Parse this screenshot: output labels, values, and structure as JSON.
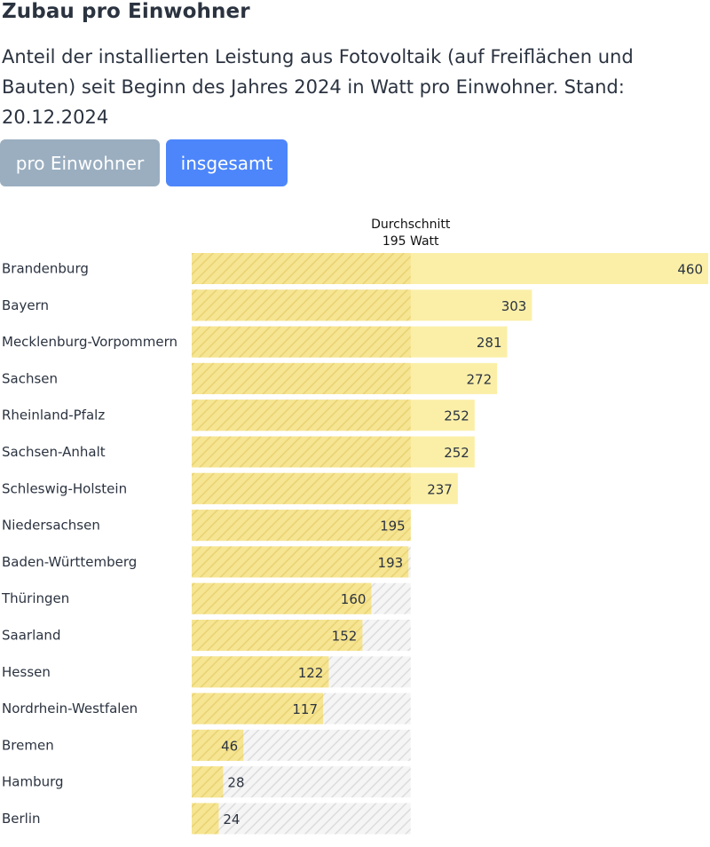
{
  "title": "Zubau pro Einwohner",
  "subtitle": "Anteil der installierten Leistung aus Fotovoltaik (auf Freiflächen und Bauten) seit Beginn des Jahres 2024 in Watt pro Einwohner. Stand: 20.12.2024",
  "buttons": {
    "per_capita": "pro Einwohner",
    "total": "insgesamt"
  },
  "colors": {
    "bar": "#fbefa8",
    "hatch_bar": "#e8d67c",
    "hatch_bg": "#d9d9d9",
    "btn_inactive": "#9aaec0",
    "btn_active": "#4d86fb"
  },
  "chart_data": {
    "type": "bar",
    "orientation": "horizontal",
    "categories": [
      "Brandenburg",
      "Bayern",
      "Mecklenburg-Vorpommern",
      "Sachsen",
      "Rheinland-Pfalz",
      "Sachsen-Anhalt",
      "Schleswig-Holstein",
      "Niedersachsen",
      "Baden-Württemberg",
      "Thüringen",
      "Saarland",
      "Hessen",
      "Nordrhein-Westfalen",
      "Bremen",
      "Hamburg",
      "Berlin"
    ],
    "values": [
      460,
      303,
      281,
      272,
      252,
      252,
      237,
      195,
      193,
      160,
      152,
      122,
      117,
      46,
      28,
      24
    ],
    "average": {
      "label": "Durchschnitt",
      "value_label": "195 Watt",
      "value": 195
    },
    "xlim": [
      0,
      460
    ]
  }
}
